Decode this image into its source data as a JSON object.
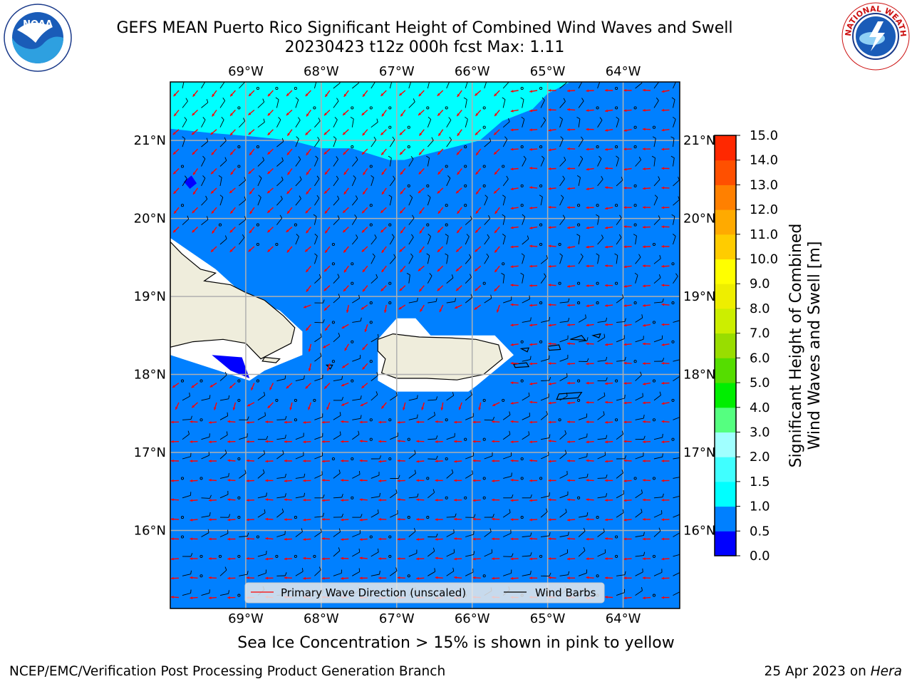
{
  "title": {
    "line1": "GEFS MEAN Puerto Rico Significant Height of Combined Wind Waves and Swell",
    "line2": "20230423 t12z 000h fcst   Max: 1.11"
  },
  "logos": {
    "left": {
      "icon": "noaa-logo",
      "text": "NOAA",
      "ring_text": "NATIONAL OCEANIC AND ATMOSPHERIC ADMINISTRATION · U.S. DEPARTMENT OF COMMERCE"
    },
    "right": {
      "icon": "nws-logo",
      "ring_text": "NATIONAL WEATHER SERVICE"
    }
  },
  "map": {
    "region": "Puerto Rico",
    "lon_range": [
      -70.0,
      -63.25
    ],
    "lat_range": [
      15.0,
      21.75
    ],
    "lon_ticks": [
      {
        "value": -69,
        "label": "69°W"
      },
      {
        "value": -68,
        "label": "68°W"
      },
      {
        "value": -67,
        "label": "67°W"
      },
      {
        "value": -66,
        "label": "66°W"
      },
      {
        "value": -65,
        "label": "65°W"
      },
      {
        "value": -64,
        "label": "64°W"
      }
    ],
    "lat_ticks": [
      {
        "value": 16,
        "label": "16°N"
      },
      {
        "value": 17,
        "label": "17°N"
      },
      {
        "value": 18,
        "label": "18°N"
      },
      {
        "value": 19,
        "label": "19°N"
      },
      {
        "value": 20,
        "label": "20°N"
      },
      {
        "value": 21,
        "label": "21°N"
      }
    ],
    "grid": true,
    "colors": {
      "ocean_0_5_to_1_0": "#0080ff",
      "ocean_1_0_to_1_5": "#00ffff",
      "ocean_0_0_to_0_5": "#0000ff",
      "land": "#efeddc",
      "missing": "#ffffff",
      "wave_arrow": "#ff0000",
      "wind_barb": "#000000",
      "grid": "#b0b0b0"
    },
    "legend": {
      "placement": "lower-center",
      "wave_label": "Primary Wave Direction (unscaled)",
      "barb_label": "Wind Barbs"
    }
  },
  "colorbar": {
    "label_line1": "Significant Height of Combined",
    "label_line2": "Wind Waves and Swell [m]",
    "levels": [
      {
        "value": "0.0",
        "color": "#0000ff"
      },
      {
        "value": "0.5",
        "color": "#0080ff"
      },
      {
        "value": "1.0",
        "color": "#00ffff"
      },
      {
        "value": "1.5",
        "color": "#40ffff"
      },
      {
        "value": "2.0",
        "color": "#a0ffff"
      },
      {
        "value": "3.0",
        "color": "#55ff80"
      },
      {
        "value": "4.0",
        "color": "#00ee00"
      },
      {
        "value": "5.0",
        "color": "#55dd00"
      },
      {
        "value": "6.0",
        "color": "#99dd00"
      },
      {
        "value": "7.0",
        "color": "#ccee00"
      },
      {
        "value": "8.0",
        "color": "#eeee00"
      },
      {
        "value": "9.0",
        "color": "#ffff00"
      },
      {
        "value": "10.0",
        "color": "#ffcc00"
      },
      {
        "value": "11.0",
        "color": "#ffaa00"
      },
      {
        "value": "12.0",
        "color": "#ff8000"
      },
      {
        "value": "13.0",
        "color": "#ff5000"
      },
      {
        "value": "14.0",
        "color": "#ff2800"
      },
      {
        "value": "15.0",
        "color": "#ff0000"
      }
    ]
  },
  "sea_ice_note": "Sea Ice Concentration > 15% is shown in pink to yellow",
  "footer": {
    "left": "NCEP/EMC/Verification Post Processing Product Generation Branch",
    "right_prefix": "25 Apr 2023 on ",
    "right_machine": "Hera"
  }
}
